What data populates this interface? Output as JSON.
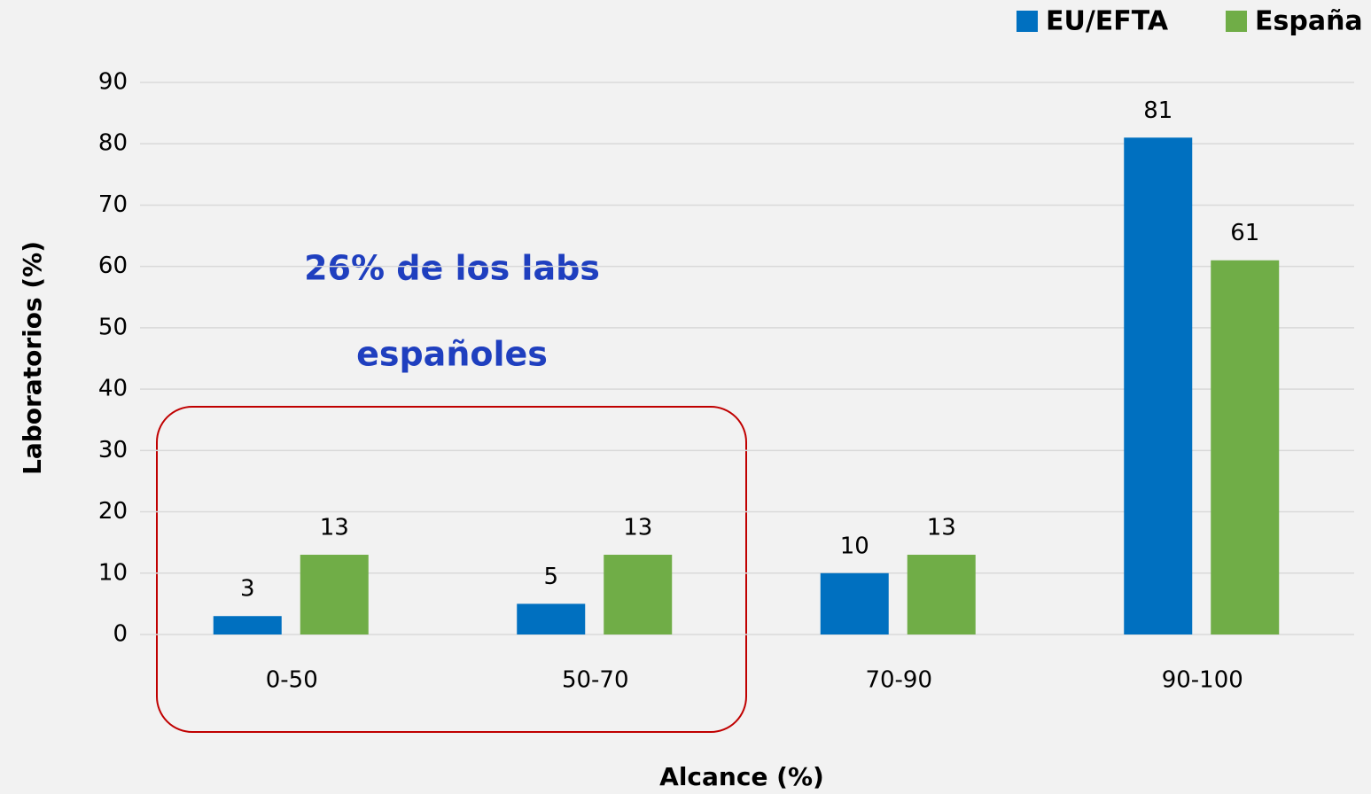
{
  "chart_data": {
    "type": "bar",
    "categories": [
      "0-50",
      "50-70",
      "70-90",
      "90-100"
    ],
    "series": [
      {
        "name": "EU/EFTA",
        "color": "#0070c0",
        "values": [
          3,
          5,
          10,
          81
        ]
      },
      {
        "name": "España",
        "color": "#70ad47",
        "values": [
          13,
          13,
          13,
          61
        ]
      }
    ],
    "xlabel": "Alcance (%)",
    "ylabel": "Laboratorios (%)",
    "annotations": [
      "26% de los labs",
      "españoles"
    ],
    "ylim": [
      0,
      90
    ],
    "yticks": [
      0,
      10,
      20,
      30,
      40,
      50,
      60,
      70,
      80,
      90
    ],
    "grid": true,
    "legend": "top-right"
  }
}
